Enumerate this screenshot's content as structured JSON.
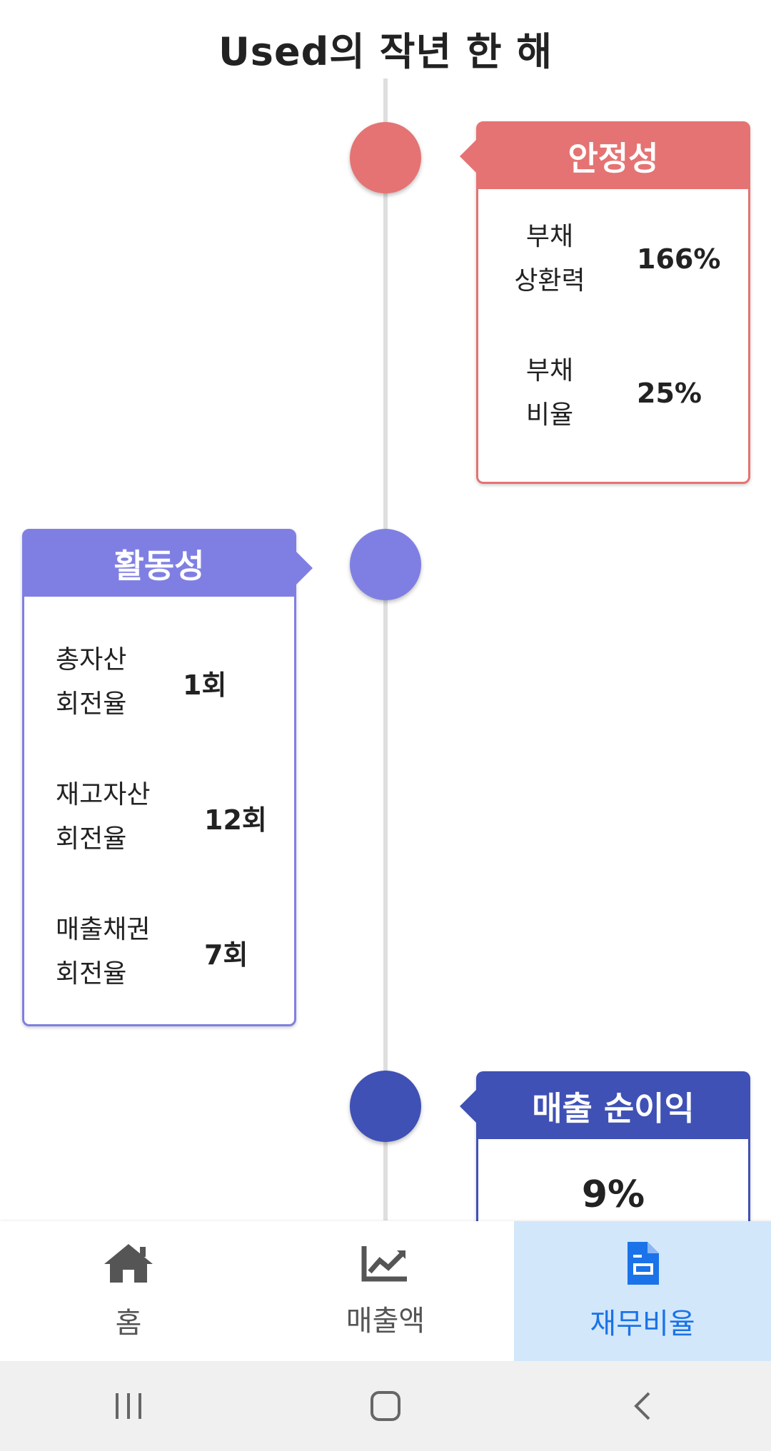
{
  "page": {
    "title": "Used의 작년 한 해"
  },
  "stability": {
    "title": "안정성",
    "color": "#e57373",
    "rows": [
      {
        "label_line1": "부채",
        "label_line2": "상환력",
        "value": "166%"
      },
      {
        "label_line1": "부채",
        "label_line2": "비율",
        "value": "25%"
      }
    ]
  },
  "activity": {
    "title": "활동성",
    "color": "#7f7fe3",
    "rows": [
      {
        "label_line1": "총자산",
        "label_line2": "회전율",
        "value": "1회"
      },
      {
        "label_line1": "재고자산",
        "label_line2": "회전율",
        "value": "12회"
      },
      {
        "label_line1": "매출채권",
        "label_line2": "회전율",
        "value": "7회"
      }
    ]
  },
  "profit": {
    "title": "매출 순이익",
    "color": "#3f51b5",
    "value": "9%"
  },
  "bottom_nav": {
    "items": [
      {
        "label": "홈",
        "icon": "home-icon"
      },
      {
        "label": "매출액",
        "icon": "chart-icon"
      },
      {
        "label": "재무비율",
        "icon": "document-icon",
        "active": true
      }
    ]
  },
  "system_nav": [
    "recent-apps-icon",
    "home-button-icon",
    "back-icon"
  ],
  "colors": {
    "active_nav_bg": "#d3e7fb",
    "active_nav_fg": "#1a73e8",
    "timeline": "#dedede"
  }
}
